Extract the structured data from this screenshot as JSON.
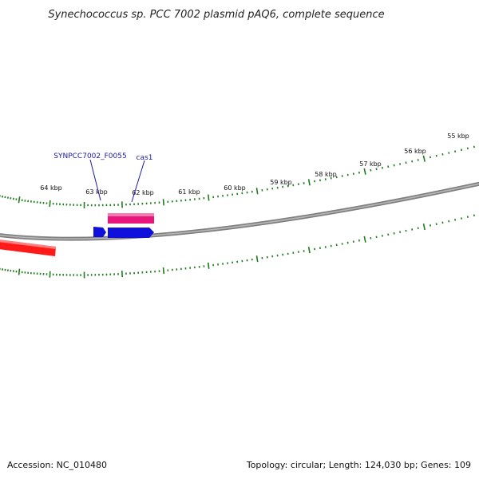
{
  "header": {
    "title": "Synechococcus sp. PCC 7002 plasmid pAQ6, complete sequence"
  },
  "ruler": {
    "unit": "kbp",
    "labels": [
      "64 kbp",
      "63 kbp",
      "62 kbp",
      "61 kbp",
      "60 kbp",
      "59 kbp",
      "58 kbp",
      "57 kbp",
      "56 kbp",
      "55 kbp"
    ],
    "tick_color": "#1e7b1e"
  },
  "backbone": {
    "color": "#808080"
  },
  "genes": {
    "labels": [
      "SYNPCC7002_F0055",
      "cas1"
    ],
    "colors": {
      "forward_red": "#ff1a1a",
      "pink": "#e8157a",
      "blue": "#1010dd"
    }
  },
  "footer": {
    "accession": "Accession: NC_010480",
    "summary": "Topology: circular; Length: 124,030 bp; Genes: 109"
  }
}
